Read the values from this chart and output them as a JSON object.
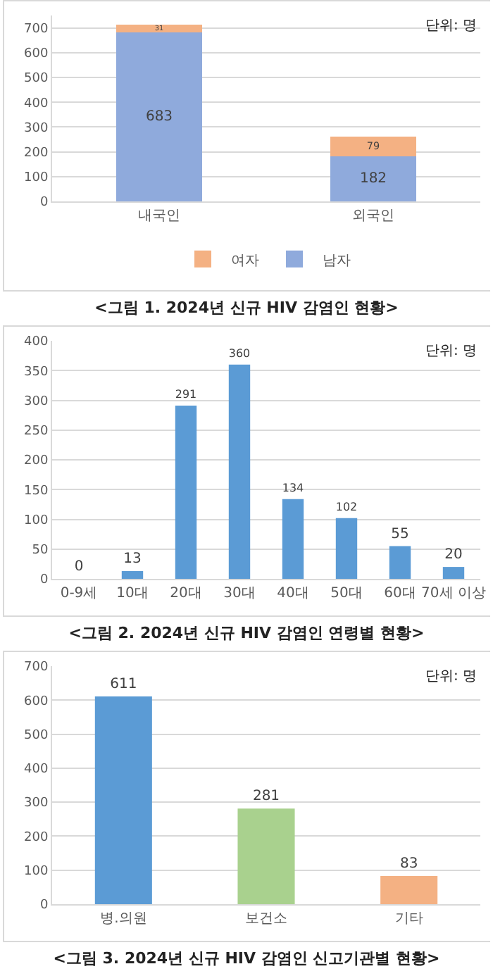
{
  "chart_data": [
    {
      "type": "bar",
      "title": "<그림 1. 2024년 신규 HIV 감염인 현황>",
      "annotations": [
        "단위: 명"
      ],
      "categories": [
        "내국인",
        "외국인"
      ],
      "stacked": true,
      "series": [
        {
          "name": "남자",
          "color": "#8faadc",
          "values": [
            683,
            182
          ]
        },
        {
          "name": "여자",
          "color": "#f4b183",
          "values": [
            31,
            79
          ]
        }
      ],
      "ylim": [
        0,
        750
      ],
      "yticks": [
        0,
        100,
        200,
        300,
        400,
        500,
        600,
        700
      ],
      "grid": "y",
      "legend": "bottom",
      "data_labels": true
    },
    {
      "type": "bar",
      "title": "<그림 2. 2024년 신규 HIV 감염인 연령별 현황>",
      "annotations": [
        "단위: 명"
      ],
      "categories": [
        "0-9세",
        "10대",
        "20대",
        "30대",
        "40대",
        "50대",
        "60대",
        "70세 이상"
      ],
      "values": [
        0,
        13,
        291,
        360,
        134,
        102,
        55,
        20
      ],
      "color": "#5b9bd5",
      "ylim": [
        0,
        400
      ],
      "yticks": [
        0,
        50,
        100,
        150,
        200,
        250,
        300,
        350,
        400
      ],
      "grid": "y",
      "data_labels": true
    },
    {
      "type": "bar",
      "title": "<그림 3. 2024년 신규 HIV 감염인 신고기관별 현황>",
      "annotations": [
        "단위: 명"
      ],
      "categories": [
        "병.의원",
        "보건소",
        "기타"
      ],
      "values": [
        611,
        281,
        83
      ],
      "colors": [
        "#5b9bd5",
        "#a9d18e",
        "#f4b183"
      ],
      "ylim": [
        0,
        700
      ],
      "yticks": [
        0,
        100,
        200,
        300,
        400,
        500,
        600,
        700
      ],
      "grid": "y",
      "data_labels": true
    }
  ]
}
